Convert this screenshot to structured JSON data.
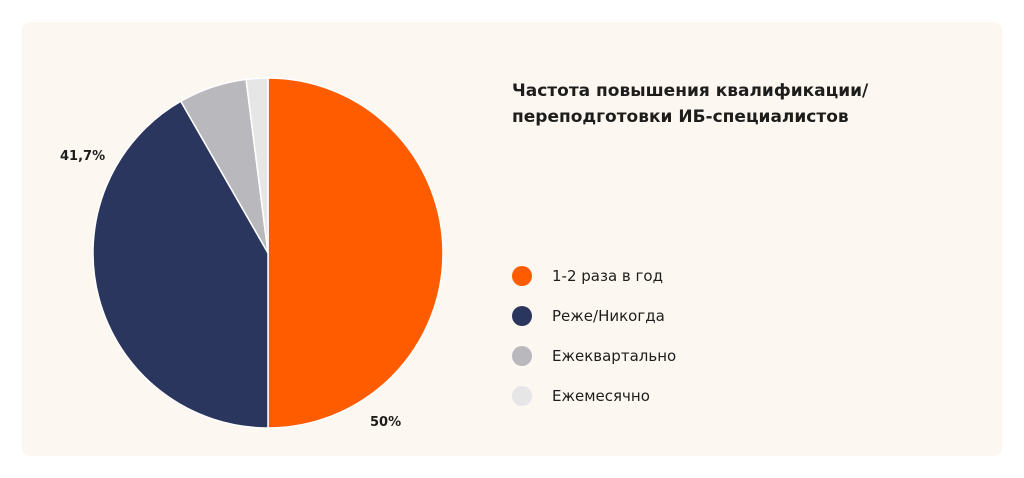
{
  "chart_data": {
    "type": "pie",
    "title": "Частота повышения квалификации/ переподготовки ИБ-специалистов",
    "legend_position": "right",
    "slices": [
      {
        "label": "1-2 раза в год",
        "value": 50,
        "value_label": "50%",
        "color": "#ff5c00"
      },
      {
        "label": "Реже/Никогда",
        "value": 41.7,
        "value_label": "41,7%",
        "color": "#2b365e"
      },
      {
        "label": "Ежеквартально",
        "value": 6.3,
        "value_label": "",
        "color": "#b8b8bd"
      },
      {
        "label": "Ежемесячно",
        "value": 2,
        "value_label": "",
        "color": "#e6e6e6"
      }
    ]
  }
}
